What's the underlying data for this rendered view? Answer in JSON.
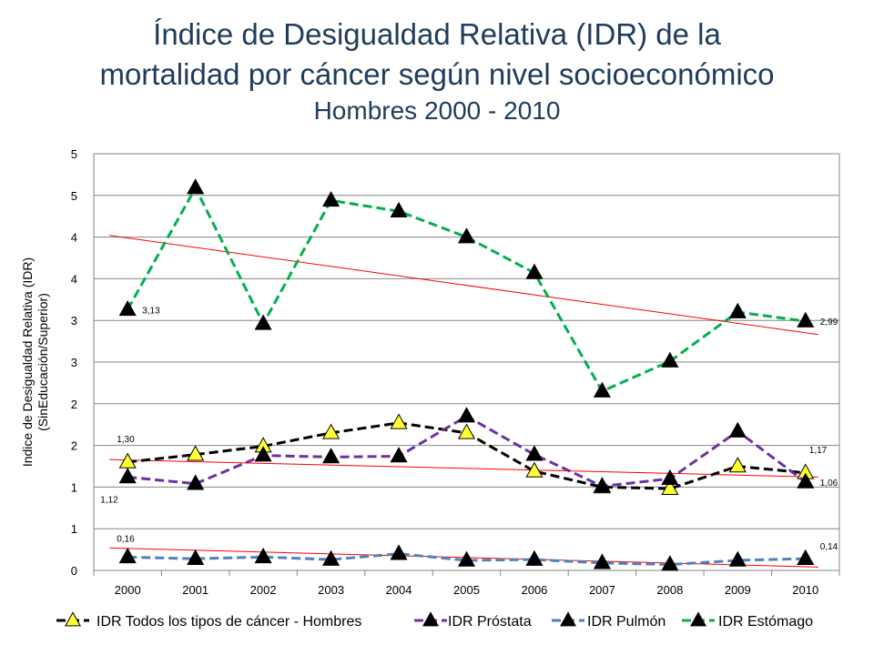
{
  "title_line1": "Índice de Desigualdad Relativa (IDR) de la",
  "title_line2": "mortalidad por cáncer según nivel socioeconómico",
  "subtitle": "Hombres 2000 - 2010",
  "chart_data": {
    "type": "line",
    "ylabel_line1": "Indice de Desigualdad Relativa (IDR)",
    "ylabel_line2": "(SinEducación/Superior)",
    "x": [
      "2000",
      "2001",
      "2002",
      "2003",
      "2004",
      "2005",
      "2006",
      "2007",
      "2008",
      "2009",
      "2010"
    ],
    "ylim": [
      0,
      5
    ],
    "ytick_values": [
      0,
      0.5,
      1,
      1.5,
      2,
      2.5,
      3,
      3.5,
      4,
      4.5,
      5
    ],
    "ytick_labels": [
      "0",
      "1",
      "1",
      "2",
      "2",
      "3",
      "3",
      "4",
      "4",
      "5",
      "5"
    ],
    "grid": "horizontal",
    "legend_position": "bottom",
    "series": [
      {
        "name": "IDR Todos los tipos de cáncer - Hombres",
        "color": "#000000",
        "marker": "#ffff33",
        "values": [
          1.3,
          1.39,
          1.49,
          1.65,
          1.77,
          1.65,
          1.19,
          1.0,
          0.98,
          1.25,
          1.17
        ]
      },
      {
        "name": "IDR Próstata",
        "color": "#7030a0",
        "marker": "#000000",
        "values": [
          1.12,
          1.04,
          1.38,
          1.36,
          1.37,
          1.85,
          1.39,
          1.01,
          1.1,
          1.67,
          1.06
        ]
      },
      {
        "name": "IDR Pulmón",
        "color": "#4f81bd",
        "marker": "#000000",
        "values": [
          0.16,
          0.14,
          0.16,
          0.13,
          0.2,
          0.12,
          0.13,
          0.09,
          0.07,
          0.12,
          0.14
        ]
      },
      {
        "name": "IDR Estómago",
        "color": "#00b050",
        "marker": "#000000",
        "values": [
          3.13,
          4.59,
          2.96,
          4.44,
          4.31,
          4.0,
          3.57,
          2.15,
          2.51,
          3.1,
          2.99
        ]
      }
    ],
    "trendlines": [
      {
        "color": "#ff0000",
        "start": 4.02,
        "end": 2.83
      },
      {
        "color": "#ff0000",
        "start": 1.33,
        "end": 1.12
      },
      {
        "color": "#ff0000",
        "start": 0.27,
        "end": 0.04
      }
    ],
    "data_labels": [
      {
        "text": "3,13",
        "series": 3,
        "index": 0
      },
      {
        "text": "2,99",
        "series": 3,
        "index": 10
      },
      {
        "text": "1,30",
        "series": 0,
        "index": 0
      },
      {
        "text": "1,17",
        "series": 0,
        "index": 10
      },
      {
        "text": "1,12",
        "series": 1,
        "index": 0
      },
      {
        "text": "1,06",
        "series": 1,
        "index": 10
      },
      {
        "text": "0,16",
        "series": 2,
        "index": 0
      },
      {
        "text": "0,14",
        "series": 2,
        "index": 10
      }
    ]
  }
}
